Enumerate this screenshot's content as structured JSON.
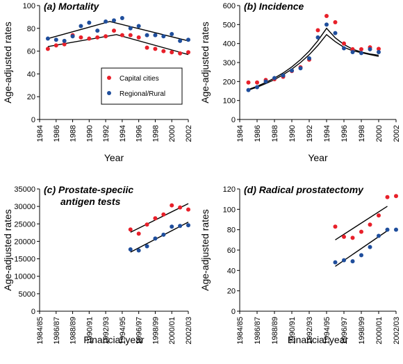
{
  "colors": {
    "capital": "#e8202a",
    "regional": "#1f4e9c"
  },
  "legend": {
    "capital": "Capital cities",
    "regional": "Regional/Rural",
    "placement": "center-right of panel (a)"
  },
  "chart_data": [
    {
      "type": "scatter",
      "panel": "a",
      "title": "(a) Mortality",
      "xlabel": "Year",
      "ylabel": "Age-adjusted rates",
      "xlim": [
        1984,
        2002
      ],
      "ylim": [
        0,
        100
      ],
      "xticks": [
        1984,
        1986,
        1988,
        1990,
        1992,
        1994,
        1996,
        1998,
        2000,
        2002
      ],
      "yticks": [
        0,
        20,
        40,
        60,
        80,
        100
      ],
      "series": [
        {
          "name": "Capital cities",
          "color": "#e8202a",
          "x": [
            1985,
            1986,
            1987,
            1988,
            1989,
            1990,
            1991,
            1992,
            1993,
            1994,
            1995,
            1996,
            1997,
            1998,
            1999,
            2000,
            2001,
            2002
          ],
          "y": [
            62,
            65,
            66,
            74,
            72,
            71,
            72,
            73,
            78,
            74,
            74,
            72,
            63,
            62,
            60,
            59,
            58,
            59
          ]
        },
        {
          "name": "Regional/Rural",
          "color": "#1f4e9c",
          "x": [
            1985,
            1986,
            1987,
            1988,
            1989,
            1990,
            1991,
            1992,
            1993,
            1994,
            1995,
            1996,
            1997,
            1998,
            1999,
            2000,
            2001,
            2002
          ],
          "y": [
            71,
            70,
            69,
            73,
            82,
            85,
            78,
            86,
            87,
            89,
            80,
            82,
            74,
            74,
            73,
            75,
            69,
            70
          ]
        }
      ],
      "fits": [
        {
          "x": [
            1985,
            1993.3,
            2002
          ],
          "y": [
            64,
            74.5,
            57
          ]
        },
        {
          "x": [
            1985,
            1992.5,
            2002
          ],
          "y": [
            71,
            86,
            69
          ]
        }
      ]
    },
    {
      "type": "scatter",
      "panel": "b",
      "title": "(b) Incidence",
      "xlabel": "Year",
      "ylabel": "Age-adjusted rates",
      "xlim": [
        1984,
        2002
      ],
      "ylim": [
        0,
        600
      ],
      "xticks": [
        1984,
        1986,
        1988,
        1990,
        1992,
        1994,
        1996,
        1998,
        2000,
        2002
      ],
      "yticks": [
        0,
        100,
        200,
        300,
        400,
        500,
        600
      ],
      "series": [
        {
          "name": "Capital cities",
          "color": "#e8202a",
          "x": [
            1985,
            1986,
            1987,
            1988,
            1989,
            1990,
            1991,
            1992,
            1993,
            1994,
            1995,
            1996,
            1997,
            1998,
            1999,
            2000
          ],
          "y": [
            195,
            195,
            208,
            212,
            225,
            255,
            275,
            315,
            470,
            545,
            512,
            400,
            370,
            370,
            380,
            372
          ]
        },
        {
          "name": "Regional/Rural",
          "color": "#1f4e9c",
          "x": [
            1985,
            1986,
            1987,
            1988,
            1989,
            1990,
            1991,
            1992,
            1993,
            1994,
            1995,
            1996,
            1997,
            1998,
            1999,
            2000
          ],
          "y": [
            155,
            170,
            200,
            218,
            232,
            258,
            270,
            322,
            432,
            500,
            455,
            375,
            355,
            350,
            370,
            355
          ]
        }
      ],
      "fits": [
        {
          "x": [
            1985,
            1986,
            1987,
            1988,
            1989,
            1990,
            1991,
            1992,
            1993,
            1994,
            1995,
            1996,
            1997,
            1998,
            1999,
            2000
          ],
          "y": [
            158,
            175,
            195,
            218,
            245,
            277,
            315,
            360,
            415,
            480,
            430,
            395,
            370,
            355,
            345,
            338
          ]
        },
        {
          "x": [
            1985,
            1986,
            1987,
            1988,
            1989,
            1990,
            1991,
            1992,
            1993,
            1994,
            1995,
            1996,
            1997,
            1998,
            1999,
            2000
          ],
          "y": [
            155,
            170,
            189,
            210,
            236,
            265,
            300,
            341,
            390,
            447,
            410,
            380,
            362,
            352,
            342,
            332
          ]
        }
      ]
    },
    {
      "type": "scatter",
      "panel": "c",
      "title": "(c) Prostate-speciic antigen tests",
      "title_lines": [
        "(c) Prostate-speciic",
        "antigen tests"
      ],
      "xlabel": "Financial year",
      "ylabel": "Age-adjusted rates",
      "xlim": [
        0,
        18
      ],
      "ylim": [
        0,
        35000
      ],
      "xticks": [
        0,
        2,
        4,
        6,
        8,
        10,
        12,
        14,
        16,
        18
      ],
      "xticklabels": [
        "1984/85",
        "1986/87",
        "1988/89",
        "1990/91",
        "1992/93",
        "1994/95",
        "1996/97",
        "1998/99",
        "2000/01",
        "2002/03"
      ],
      "yticks": [
        0,
        5000,
        10000,
        15000,
        20000,
        25000,
        30000,
        35000
      ],
      "series": [
        {
          "name": "Capital cities",
          "color": "#e8202a",
          "x": [
            11,
            12,
            13,
            14,
            15,
            16,
            17,
            18
          ],
          "y": [
            23400,
            22200,
            24800,
            26600,
            27700,
            30300,
            29700,
            29100
          ]
        },
        {
          "name": "Regional/Rural",
          "color": "#1f4e9c",
          "x": [
            11,
            12,
            13,
            14,
            15,
            16,
            17,
            18
          ],
          "y": [
            17700,
            17400,
            18600,
            20800,
            21900,
            24200,
            24400,
            24600
          ]
        }
      ],
      "fits": [
        {
          "x": [
            11,
            18
          ],
          "y": [
            22600,
            30800
          ]
        },
        {
          "x": [
            11,
            18
          ],
          "y": [
            16900,
            25500
          ]
        }
      ]
    },
    {
      "type": "scatter",
      "panel": "d",
      "title": "(d) Radical prostatectomy",
      "xlabel": "Financial year",
      "ylabel": "Age-adjusted rates",
      "xlim": [
        0,
        18
      ],
      "ylim": [
        0,
        120
      ],
      "xticks": [
        0,
        2,
        4,
        6,
        8,
        10,
        12,
        14,
        16,
        18
      ],
      "xticklabels": [
        "1984/85",
        "1986/87",
        "1988/89",
        "1990/91",
        "1992/93",
        "1994/95",
        "1996/97",
        "1998/99",
        "2000/01",
        "2002/03"
      ],
      "yticks": [
        0,
        20,
        40,
        60,
        80,
        100,
        120
      ],
      "series": [
        {
          "name": "Capital cities",
          "color": "#e8202a",
          "x": [
            11,
            12,
            13,
            14,
            15,
            16,
            17,
            18
          ],
          "y": [
            83,
            73,
            72,
            78,
            85,
            94,
            112,
            113
          ]
        },
        {
          "name": "Regional/Rural",
          "color": "#1f4e9c",
          "x": [
            11,
            12,
            13,
            14,
            15,
            16,
            17,
            18
          ],
          "y": [
            48,
            50,
            49,
            55,
            63,
            74,
            80,
            80
          ]
        }
      ],
      "fits": [
        {
          "x": [
            11,
            17
          ],
          "y": [
            70,
            103
          ]
        },
        {
          "x": [
            11,
            17
          ],
          "y": [
            44,
            79
          ]
        }
      ]
    }
  ]
}
